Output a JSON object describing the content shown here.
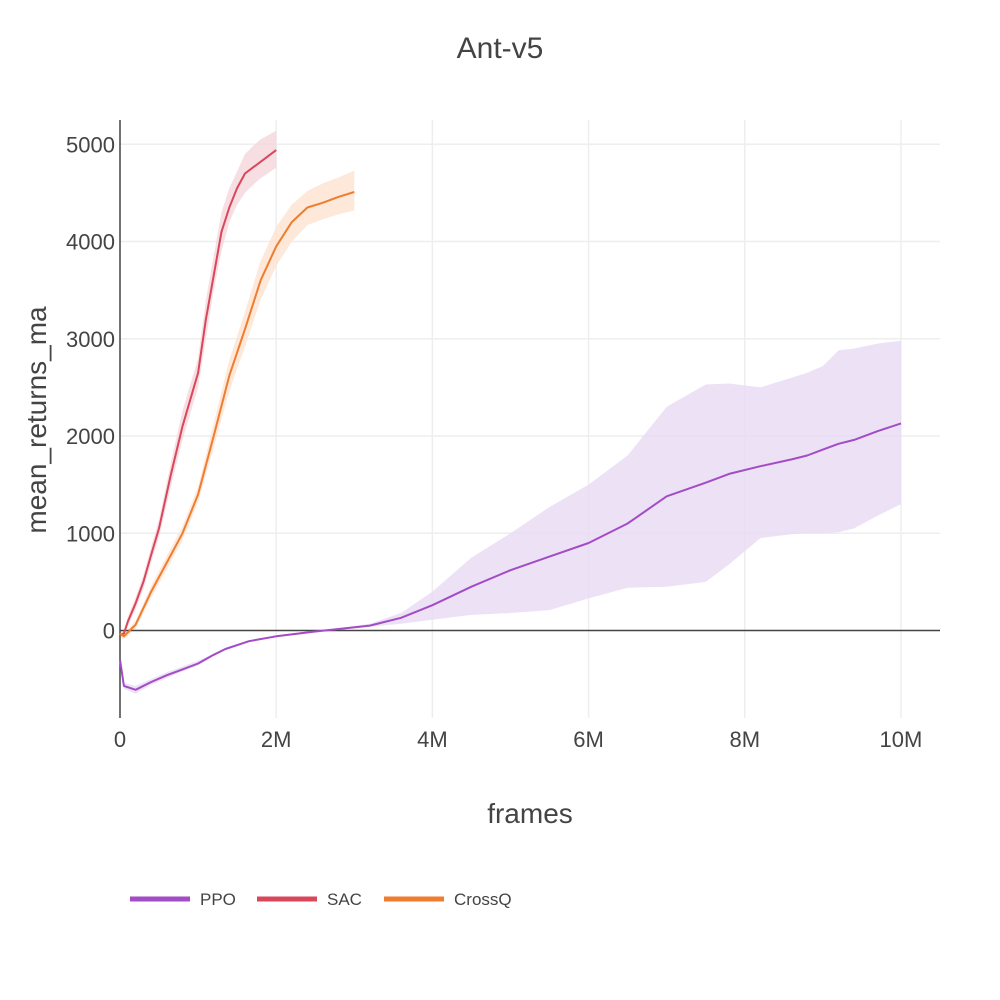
{
  "chart_data": {
    "type": "line",
    "title": "Ant-v5",
    "xlabel": "frames",
    "ylabel": "mean_returns_ma",
    "xlim": [
      0,
      10500000
    ],
    "ylim": [
      -900,
      5250
    ],
    "x_ticks": [
      0,
      2000000,
      4000000,
      6000000,
      8000000,
      10000000
    ],
    "x_tick_labels": [
      "0",
      "2M",
      "4M",
      "6M",
      "8M",
      "10M"
    ],
    "y_ticks": [
      0,
      1000,
      2000,
      3000,
      4000,
      5000
    ],
    "y_tick_labels": [
      "0",
      "1000",
      "2000",
      "3000",
      "4000",
      "5000"
    ],
    "grid": true,
    "legend_position": "bottom-left",
    "series": [
      {
        "name": "PPO",
        "color": "#a24cc6",
        "band_color": "#e9daf4",
        "x": [
          0,
          50000,
          200000,
          400000,
          600000,
          800000,
          1000000,
          1200000,
          1350000,
          1650000,
          2000000,
          2500000,
          2800000,
          3200000,
          3600000,
          4000000,
          4500000,
          5000000,
          5500000,
          6000000,
          6500000,
          7000000,
          7500000,
          7800000,
          8200000,
          8600000,
          8800000,
          9000000,
          9200000,
          9400000,
          9700000,
          10000000
        ],
        "y": [
          -300,
          -570,
          -610,
          -530,
          -460,
          -400,
          -340,
          -250,
          -190,
          -110,
          -60,
          -10,
          15,
          50,
          130,
          260,
          450,
          620,
          760,
          900,
          1100,
          1380,
          1520,
          1610,
          1690,
          1760,
          1800,
          1860,
          1920,
          1960,
          2050,
          2130
        ],
        "lower": [
          -300,
          -600,
          -650,
          -560,
          -490,
          -420,
          -360,
          -260,
          -200,
          -120,
          -70,
          -20,
          5,
          40,
          70,
          110,
          160,
          180,
          210,
          330,
          440,
          450,
          500,
          680,
          950,
          990,
          1000,
          1000,
          1010,
          1050,
          1180,
          1300
        ],
        "upper": [
          -300,
          -540,
          -570,
          -500,
          -430,
          -370,
          -310,
          -240,
          -180,
          -100,
          -50,
          0,
          25,
          70,
          180,
          400,
          750,
          1000,
          1270,
          1500,
          1800,
          2300,
          2530,
          2540,
          2500,
          2600,
          2650,
          2720,
          2880,
          2900,
          2950,
          2980
        ]
      },
      {
        "name": "SAC",
        "color": "#d9475b",
        "band_color": "#f5d6dc",
        "x": [
          0,
          50000,
          100000,
          200000,
          300000,
          400000,
          500000,
          650000,
          800000,
          1000000,
          1100000,
          1200000,
          1300000,
          1400000,
          1500000,
          1600000,
          1700000,
          1800000,
          2000000
        ],
        "y": [
          -50,
          -30,
          90,
          280,
          500,
          780,
          1050,
          1600,
          2100,
          2650,
          3200,
          3650,
          4100,
          4350,
          4550,
          4700,
          4760,
          4820,
          4940
        ],
        "lower": [
          -80,
          -50,
          40,
          220,
          430,
          700,
          960,
          1480,
          1960,
          2500,
          3000,
          3500,
          3900,
          4200,
          4380,
          4500,
          4580,
          4650,
          4760
        ],
        "upper": [
          -20,
          -10,
          140,
          340,
          570,
          860,
          1140,
          1720,
          2260,
          2800,
          3400,
          3850,
          4300,
          4550,
          4720,
          4900,
          4980,
          5050,
          5140
        ]
      },
      {
        "name": "CrossQ",
        "color": "#f07c2f",
        "band_color": "#fde2cf",
        "x": [
          0,
          50000,
          100000,
          200000,
          400000,
          600000,
          800000,
          1000000,
          1200000,
          1400000,
          1600000,
          1800000,
          2000000,
          2200000,
          2400000,
          2600000,
          2800000,
          3000000
        ],
        "y": [
          -30,
          -60,
          -20,
          60,
          400,
          700,
          1000,
          1400,
          2000,
          2620,
          3100,
          3600,
          3950,
          4200,
          4350,
          4400,
          4460,
          4510
        ],
        "lower": [
          -70,
          -90,
          -50,
          20,
          340,
          630,
          930,
          1320,
          1880,
          2460,
          2920,
          3400,
          3750,
          4000,
          4170,
          4230,
          4280,
          4320
        ],
        "upper": [
          10,
          -30,
          10,
          100,
          460,
          770,
          1070,
          1480,
          2130,
          2780,
          3280,
          3800,
          4150,
          4380,
          4520,
          4600,
          4660,
          4730
        ]
      }
    ]
  }
}
